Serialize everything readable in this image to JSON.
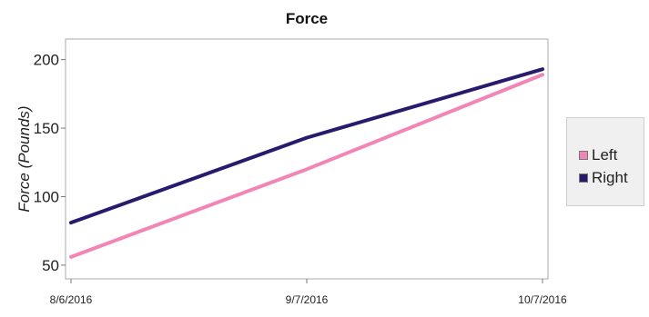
{
  "chart_data": {
    "type": "line",
    "title": "Force",
    "xlabel": "",
    "ylabel": "Force (Pounds)",
    "x": [
      "8/6/2016",
      "9/7/2016",
      "10/7/2016"
    ],
    "ylim": [
      40,
      215
    ],
    "yticks": [
      50,
      100,
      150,
      200
    ],
    "grid": false,
    "legend_position": "right",
    "series": [
      {
        "name": "Left",
        "color": "#f285b5",
        "values": [
          56,
          120,
          189
        ]
      },
      {
        "name": "Right",
        "color": "#2a1a6e",
        "values": [
          81,
          143,
          193
        ]
      }
    ]
  }
}
